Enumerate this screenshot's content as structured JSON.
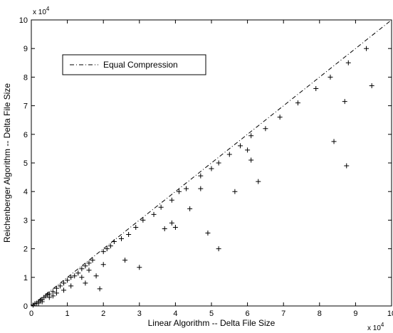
{
  "chart_data": {
    "type": "scatter",
    "xlabel": "Linear Algorithm -- Delta File Size",
    "ylabel": "Reichenberger Algorithm -- Delta File Size",
    "x_multiplier": "x 10",
    "x_multiplier_exp": "4",
    "y_multiplier": "x 10",
    "y_multiplier_exp": "4",
    "xlim": [
      0,
      10
    ],
    "ylim": [
      0,
      10
    ],
    "xticks": [
      "0",
      "1",
      "2",
      "3",
      "4",
      "5",
      "6",
      "7",
      "8",
      "9",
      "10"
    ],
    "yticks": [
      "0",
      "1",
      "2",
      "3",
      "4",
      "5",
      "6",
      "7",
      "8",
      "9",
      "10"
    ],
    "legend": {
      "placement": "top-left",
      "entries": [
        "Equal Compression"
      ]
    },
    "reference_line": {
      "name": "Equal Compression",
      "style": "dash-dot",
      "points": [
        [
          0,
          0
        ],
        [
          10,
          10
        ]
      ]
    },
    "series": [
      {
        "marker": "+",
        "points": [
          [
            0.05,
            0.03
          ],
          [
            0.1,
            0.08
          ],
          [
            0.15,
            0.1
          ],
          [
            0.2,
            0.15
          ],
          [
            0.25,
            0.2
          ],
          [
            0.3,
            0.22
          ],
          [
            0.35,
            0.3
          ],
          [
            0.4,
            0.35
          ],
          [
            0.45,
            0.4
          ],
          [
            0.5,
            0.42
          ],
          [
            0.6,
            0.5
          ],
          [
            0.7,
            0.62
          ],
          [
            0.8,
            0.7
          ],
          [
            0.9,
            0.8
          ],
          [
            1.0,
            0.9
          ],
          [
            1.1,
            1.0
          ],
          [
            1.2,
            1.05
          ],
          [
            1.3,
            1.15
          ],
          [
            1.4,
            1.3
          ],
          [
            1.5,
            1.4
          ],
          [
            1.6,
            1.5
          ],
          [
            1.7,
            1.6
          ],
          [
            0.3,
            0.15
          ],
          [
            0.5,
            0.3
          ],
          [
            0.7,
            0.45
          ],
          [
            0.9,
            0.55
          ],
          [
            1.1,
            0.7
          ],
          [
            0.2,
            0.1
          ],
          [
            0.6,
            0.35
          ],
          [
            2.0,
            1.9
          ],
          [
            2.1,
            2.0
          ],
          [
            2.2,
            2.1
          ],
          [
            2.3,
            2.25
          ],
          [
            2.5,
            2.35
          ],
          [
            2.7,
            2.5
          ],
          [
            2.9,
            2.75
          ],
          [
            3.1,
            3.0
          ],
          [
            3.4,
            3.2
          ],
          [
            3.6,
            3.45
          ],
          [
            3.9,
            3.7
          ],
          [
            4.1,
            4.0
          ],
          [
            4.3,
            4.1
          ],
          [
            4.7,
            4.55
          ],
          [
            5.0,
            4.8
          ],
          [
            5.2,
            5.0
          ],
          [
            5.5,
            5.3
          ],
          [
            5.8,
            5.6
          ],
          [
            6.1,
            5.95
          ],
          [
            6.5,
            6.2
          ],
          [
            6.9,
            6.6
          ],
          [
            7.4,
            7.1
          ],
          [
            7.9,
            7.6
          ],
          [
            8.3,
            8.0
          ],
          [
            8.8,
            8.5
          ],
          [
            9.3,
            9.0
          ],
          [
            1.4,
            1.0
          ],
          [
            1.5,
            0.8
          ],
          [
            1.8,
            1.05
          ],
          [
            2.0,
            1.45
          ],
          [
            1.6,
            1.25
          ],
          [
            1.9,
            0.6
          ],
          [
            2.6,
            1.6
          ],
          [
            3.0,
            1.35
          ],
          [
            3.7,
            2.7
          ],
          [
            3.9,
            2.9
          ],
          [
            4.0,
            2.75
          ],
          [
            4.4,
            3.4
          ],
          [
            4.7,
            4.1
          ],
          [
            4.9,
            2.55
          ],
          [
            5.2,
            2.0
          ],
          [
            5.65,
            4.0
          ],
          [
            6.0,
            5.45
          ],
          [
            6.1,
            5.1
          ],
          [
            6.3,
            4.35
          ],
          [
            8.4,
            5.75
          ],
          [
            8.7,
            7.15
          ],
          [
            8.75,
            4.9
          ],
          [
            9.45,
            7.7
          ]
        ]
      }
    ],
    "grid": false
  }
}
